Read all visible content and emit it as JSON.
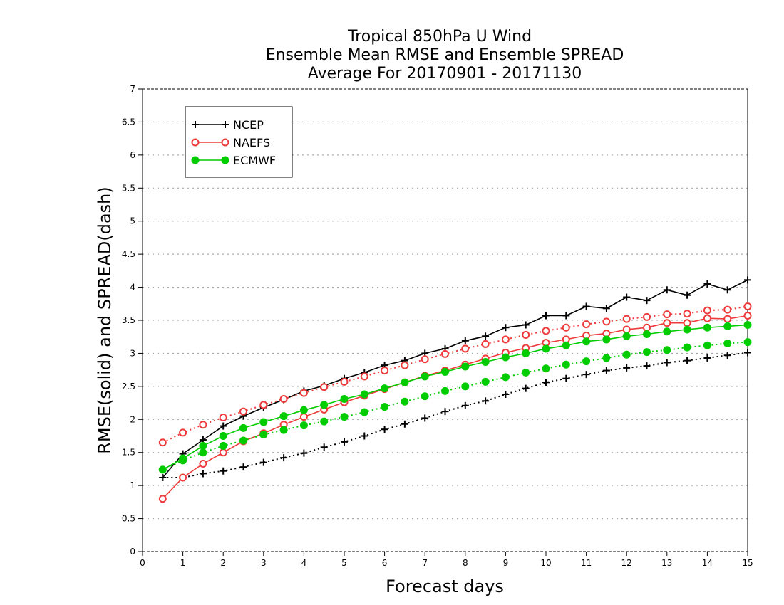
{
  "chart_data": {
    "type": "line",
    "title": [
      "Tropical 850hPa U Wind",
      "Ensemble Mean RMSE and Ensemble SPREAD",
      "Average For 20170901 - 20171130"
    ],
    "xlabel": "Forecast days",
    "ylabel": "RMSE(solid) and SPREAD(dash)",
    "xlim": [
      0,
      15
    ],
    "ylim": [
      0,
      7
    ],
    "xticks": [
      "0",
      "1",
      "2",
      "3",
      "4",
      "5",
      "6",
      "7",
      "8",
      "9",
      "10",
      "11",
      "12",
      "13",
      "14",
      "15"
    ],
    "yticks": [
      "0",
      "0.5",
      "1",
      "1.5",
      "2",
      "2.5",
      "3",
      "3.5",
      "4",
      "4.5",
      "5",
      "5.5",
      "6",
      "6.5",
      "7"
    ],
    "grid": true,
    "legend_position": "top-left",
    "x": [
      0.5,
      1,
      1.5,
      2,
      2.5,
      3,
      3.5,
      4,
      4.5,
      5,
      5.5,
      6,
      6.5,
      7,
      7.5,
      8,
      8.5,
      9,
      9.5,
      10,
      10.5,
      11,
      11.5,
      12,
      12.5,
      13,
      13.5,
      14,
      14.5,
      15
    ],
    "series": [
      {
        "name": "NCEP",
        "kind": "rmse",
        "style": "solid",
        "marker": "plus",
        "color": "#000000",
        "values": [
          1.12,
          1.48,
          1.69,
          1.9,
          2.05,
          2.18,
          2.3,
          2.43,
          2.51,
          2.62,
          2.71,
          2.82,
          2.89,
          3.0,
          3.07,
          3.19,
          3.26,
          3.39,
          3.43,
          3.57,
          3.57,
          3.71,
          3.68,
          3.85,
          3.8,
          3.96,
          3.88,
          4.05,
          3.96,
          4.11
        ]
      },
      {
        "name": "NCEP",
        "kind": "spread",
        "style": "dotted",
        "marker": "plus",
        "color": "#000000",
        "values": [
          1.12,
          1.12,
          1.18,
          1.22,
          1.28,
          1.35,
          1.42,
          1.49,
          1.58,
          1.66,
          1.75,
          1.85,
          1.93,
          2.02,
          2.12,
          2.21,
          2.28,
          2.38,
          2.47,
          2.56,
          2.62,
          2.68,
          2.74,
          2.78,
          2.81,
          2.86,
          2.89,
          2.93,
          2.97,
          3.01
        ]
      },
      {
        "name": "NAEFS",
        "kind": "rmse",
        "style": "solid",
        "marker": "open-circle",
        "color": "#ee3a3a",
        "values": [
          0.8,
          1.12,
          1.33,
          1.5,
          1.67,
          1.79,
          1.92,
          2.04,
          2.15,
          2.26,
          2.36,
          2.46,
          2.56,
          2.66,
          2.74,
          2.83,
          2.92,
          3.01,
          3.08,
          3.16,
          3.21,
          3.27,
          3.3,
          3.36,
          3.39,
          3.46,
          3.46,
          3.53,
          3.52,
          3.57
        ]
      },
      {
        "name": "NAEFS",
        "kind": "spread",
        "style": "dotted",
        "marker": "open-circle",
        "color": "#ee3a3a",
        "values": [
          1.65,
          1.8,
          1.92,
          2.03,
          2.12,
          2.22,
          2.31,
          2.4,
          2.49,
          2.57,
          2.65,
          2.74,
          2.82,
          2.91,
          2.99,
          3.07,
          3.14,
          3.21,
          3.28,
          3.34,
          3.39,
          3.44,
          3.48,
          3.52,
          3.55,
          3.59,
          3.6,
          3.65,
          3.66,
          3.71
        ]
      },
      {
        "name": "ECMWF",
        "kind": "rmse",
        "style": "solid",
        "marker": "filled-circle",
        "color": "#00cc00",
        "values": [
          1.24,
          1.41,
          1.6,
          1.75,
          1.87,
          1.96,
          2.05,
          2.14,
          2.22,
          2.31,
          2.38,
          2.47,
          2.56,
          2.65,
          2.72,
          2.8,
          2.87,
          2.94,
          3.0,
          3.07,
          3.12,
          3.18,
          3.21,
          3.26,
          3.29,
          3.33,
          3.36,
          3.39,
          3.41,
          3.43
        ]
      },
      {
        "name": "ECMWF",
        "kind": "spread",
        "style": "dotted",
        "marker": "filled-circle",
        "color": "#00cc00",
        "values": [
          1.24,
          1.38,
          1.5,
          1.6,
          1.68,
          1.77,
          1.84,
          1.91,
          1.97,
          2.04,
          2.11,
          2.19,
          2.27,
          2.35,
          2.43,
          2.5,
          2.57,
          2.64,
          2.71,
          2.77,
          2.83,
          2.88,
          2.93,
          2.98,
          3.02,
          3.05,
          3.09,
          3.12,
          3.15,
          3.17
        ]
      }
    ],
    "legend": [
      {
        "name": "NCEP",
        "marker": "plus",
        "color": "#000000"
      },
      {
        "name": "NAEFS",
        "marker": "open-circle",
        "color": "#ee3a3a"
      },
      {
        "name": "ECMWF",
        "marker": "filled-circle",
        "color": "#00cc00"
      }
    ]
  }
}
